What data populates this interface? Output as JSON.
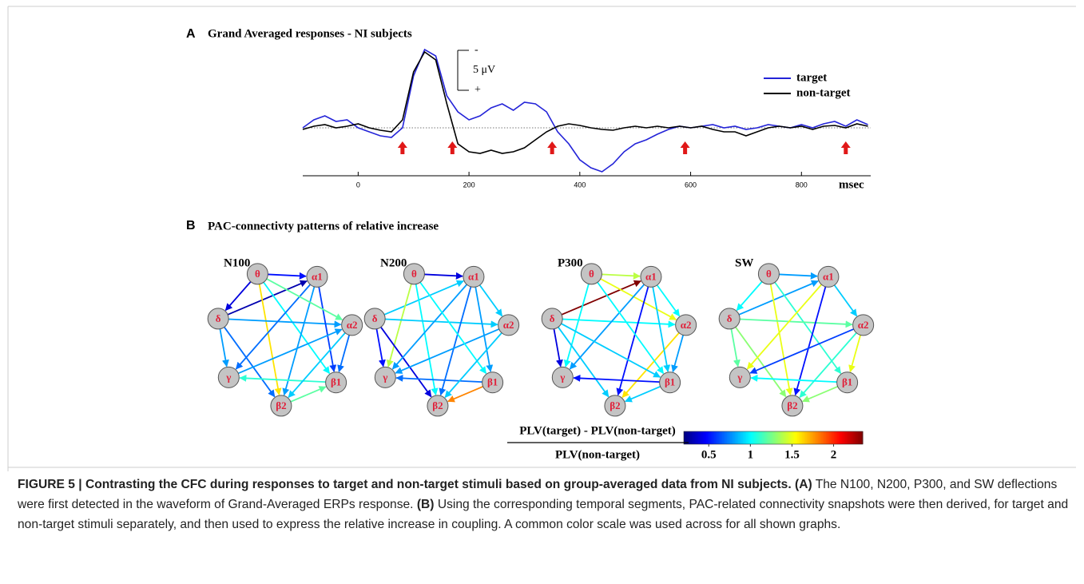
{
  "chart_data": {
    "type": "line",
    "panel_label": "A",
    "title": "Grand Averaged responses - NI subjects",
    "x": [
      -100,
      -80,
      -60,
      -40,
      -20,
      0,
      20,
      40,
      60,
      80,
      100,
      120,
      140,
      160,
      180,
      200,
      220,
      240,
      260,
      280,
      300,
      320,
      340,
      360,
      380,
      400,
      420,
      440,
      460,
      480,
      500,
      520,
      540,
      560,
      580,
      600,
      620,
      640,
      660,
      680,
      700,
      720,
      740,
      760,
      780,
      800,
      820,
      840,
      860,
      880,
      900,
      920
    ],
    "series": [
      {
        "name": "target",
        "color": "#2424d8",
        "values": [
          0,
          -1,
          -1.5,
          -0.8,
          -1,
          0,
          0.5,
          1,
          1.2,
          0,
          -6.5,
          -9.8,
          -9,
          -4,
          -2,
          -1,
          -1.5,
          -2.5,
          -3,
          -2.2,
          -3.2,
          -3,
          -2,
          0.5,
          2,
          4,
          5,
          5.5,
          4.5,
          3,
          2,
          1.5,
          0.8,
          0.2,
          -0.2,
          0,
          -0.2,
          -0.4,
          0,
          -0.2,
          0.2,
          0,
          -0.4,
          -0.2,
          0,
          -0.4,
          0,
          -0.5,
          -0.8,
          -0.2,
          -1,
          -0.4
        ]
      },
      {
        "name": "non-target",
        "color": "#000000",
        "values": [
          0.2,
          -0.2,
          -0.4,
          0,
          -0.2,
          -0.5,
          0,
          0.3,
          0.5,
          -1,
          -7,
          -9.5,
          -8.5,
          -3,
          2,
          3,
          3.2,
          2.8,
          3.2,
          3,
          2.5,
          1.5,
          0.5,
          -0.2,
          -0.5,
          -0.3,
          0,
          0.2,
          0.3,
          0,
          -0.2,
          0,
          -0.2,
          0,
          -0.2,
          0,
          -0.2,
          0.2,
          0.5,
          0.5,
          1,
          0.5,
          0,
          -0.2,
          0,
          -0.2,
          0.2,
          -0.2,
          -0.3,
          0,
          -0.5,
          -0.2
        ]
      }
    ],
    "xlim": [
      -100,
      925
    ],
    "xticks": [
      0,
      200,
      400,
      600,
      800
    ],
    "xlabel": "msec",
    "ylim": [
      -10.5,
      6
    ],
    "y_inverted": true,
    "scale_bar": {
      "value": 5,
      "label": "5 μV",
      "top_label": "-",
      "bottom_label": "+"
    },
    "arrows_x": [
      80,
      170,
      350,
      590,
      880
    ],
    "arrow_color": "#e01818"
  },
  "panel_b": {
    "label": "B",
    "title": "PAC-connectivty patterns of relative increase",
    "nodes": [
      "θ",
      "α1",
      "α2",
      "β1",
      "β2",
      "γ",
      "δ"
    ],
    "graphs": [
      {
        "title": "N100",
        "edges": [
          {
            "from": 6,
            "to": 1,
            "value": 0.3
          },
          {
            "from": 0,
            "to": 6,
            "value": 0.4
          },
          {
            "from": 0,
            "to": 1,
            "value": 0.5
          },
          {
            "from": 0,
            "to": 4,
            "value": 1.6
          },
          {
            "from": 0,
            "to": 3,
            "value": 1.0
          },
          {
            "from": 6,
            "to": 2,
            "value": 0.8
          },
          {
            "from": 6,
            "to": 5,
            "value": 0.8
          },
          {
            "from": 6,
            "to": 4,
            "value": 0.7
          },
          {
            "from": 1,
            "to": 5,
            "value": 0.7
          },
          {
            "from": 1,
            "to": 3,
            "value": 0.6
          },
          {
            "from": 1,
            "to": 4,
            "value": 0.8
          },
          {
            "from": 0,
            "to": 2,
            "value": 1.2
          },
          {
            "from": 3,
            "to": 5,
            "value": 1.1
          },
          {
            "from": 2,
            "to": 4,
            "value": 0.9
          },
          {
            "from": 4,
            "to": 3,
            "value": 1.2
          },
          {
            "from": 5,
            "to": 2,
            "value": 0.8
          },
          {
            "from": 2,
            "to": 3,
            "value": 0.7
          }
        ]
      },
      {
        "title": "N200",
        "edges": [
          {
            "from": 0,
            "to": 1,
            "value": 0.4
          },
          {
            "from": 6,
            "to": 1,
            "value": 0.9
          },
          {
            "from": 0,
            "to": 5,
            "value": 1.4
          },
          {
            "from": 0,
            "to": 4,
            "value": 1.0
          },
          {
            "from": 6,
            "to": 2,
            "value": 0.9
          },
          {
            "from": 6,
            "to": 5,
            "value": 0.5
          },
          {
            "from": 6,
            "to": 4,
            "value": 0.4
          },
          {
            "from": 1,
            "to": 5,
            "value": 0.8
          },
          {
            "from": 1,
            "to": 3,
            "value": 0.8
          },
          {
            "from": 1,
            "to": 4,
            "value": 0.7
          },
          {
            "from": 3,
            "to": 5,
            "value": 0.7
          },
          {
            "from": 3,
            "to": 4,
            "value": 1.8
          },
          {
            "from": 2,
            "to": 5,
            "value": 0.8
          },
          {
            "from": 0,
            "to": 3,
            "value": 1.0
          },
          {
            "from": 2,
            "to": 4,
            "value": 0.9
          },
          {
            "from": 1,
            "to": 2,
            "value": 0.9
          }
        ]
      },
      {
        "title": "P300",
        "edges": [
          {
            "from": 6,
            "to": 1,
            "value": 2.35
          },
          {
            "from": 0,
            "to": 1,
            "value": 1.4
          },
          {
            "from": 0,
            "to": 5,
            "value": 1.0
          },
          {
            "from": 0,
            "to": 2,
            "value": 1.5
          },
          {
            "from": 6,
            "to": 5,
            "value": 0.4
          },
          {
            "from": 6,
            "to": 2,
            "value": 1.0
          },
          {
            "from": 6,
            "to": 4,
            "value": 0.9
          },
          {
            "from": 1,
            "to": 4,
            "value": 0.5
          },
          {
            "from": 1,
            "to": 5,
            "value": 0.8
          },
          {
            "from": 2,
            "to": 4,
            "value": 1.6
          },
          {
            "from": 3,
            "to": 5,
            "value": 0.5
          },
          {
            "from": 3,
            "to": 4,
            "value": 0.9
          },
          {
            "from": 2,
            "to": 3,
            "value": 0.8
          },
          {
            "from": 0,
            "to": 3,
            "value": 1.0
          },
          {
            "from": 1,
            "to": 3,
            "value": 0.9
          },
          {
            "from": 1,
            "to": 2,
            "value": 1.0
          },
          {
            "from": 6,
            "to": 3,
            "value": 0.9
          }
        ]
      },
      {
        "title": "SW",
        "edges": [
          {
            "from": 0,
            "to": 6,
            "value": 1.0
          },
          {
            "from": 0,
            "to": 1,
            "value": 0.8
          },
          {
            "from": 6,
            "to": 1,
            "value": 0.8
          },
          {
            "from": 0,
            "to": 4,
            "value": 1.5
          },
          {
            "from": 0,
            "to": 3,
            "value": 1.1
          },
          {
            "from": 6,
            "to": 2,
            "value": 1.2
          },
          {
            "from": 6,
            "to": 5,
            "value": 1.2
          },
          {
            "from": 6,
            "to": 4,
            "value": 1.3
          },
          {
            "from": 1,
            "to": 5,
            "value": 1.5
          },
          {
            "from": 1,
            "to": 4,
            "value": 0.5
          },
          {
            "from": 2,
            "to": 5,
            "value": 0.6
          },
          {
            "from": 2,
            "to": 4,
            "value": 1.1
          },
          {
            "from": 3,
            "to": 4,
            "value": 1.3
          },
          {
            "from": 3,
            "to": 5,
            "value": 1.0
          },
          {
            "from": 2,
            "to": 3,
            "value": 1.5
          },
          {
            "from": 1,
            "to": 2,
            "value": 0.9
          }
        ]
      }
    ],
    "colorbar": {
      "numerator": "PLV(target) - PLV(non-target)",
      "denominator": "PLV(non-target)",
      "clim": [
        0.2,
        2.35
      ],
      "ticks": [
        0.5,
        1,
        1.5,
        2
      ],
      "colormap": "jet"
    }
  },
  "caption": [
    {
      "text": "FIGURE 5 | Contrasting the CFC during responses to target and non-target stimuli based on group-averaged data from NI subjects. (A)",
      "bold": true
    },
    {
      "text": " The N100, N200, P300, and SW deflections were first detected in the waveform of Grand-Averaged ERPs response. ",
      "bold": false
    },
    {
      "text": "(B)",
      "bold": true
    },
    {
      "text": " Using the corresponding temporal segments, PAC-related connectivity snapshots were then derived, for target and non-target stimuli separately, and then used to express the relative increase in coupling. A common color scale was used across for all shown graphs.",
      "bold": false
    }
  ]
}
